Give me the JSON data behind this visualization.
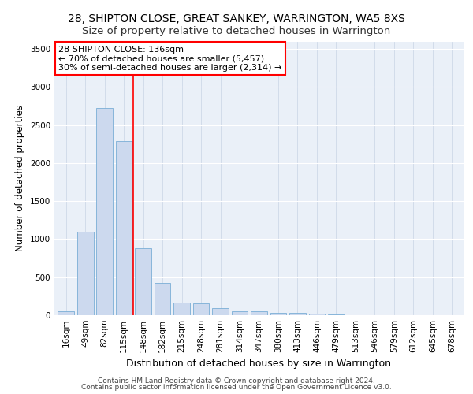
{
  "title1": "28, SHIPTON CLOSE, GREAT SANKEY, WARRINGTON, WA5 8XS",
  "title2": "Size of property relative to detached houses in Warrington",
  "xlabel": "Distribution of detached houses by size in Warrington",
  "ylabel": "Number of detached properties",
  "categories": [
    "16sqm",
    "49sqm",
    "82sqm",
    "115sqm",
    "148sqm",
    "182sqm",
    "215sqm",
    "248sqm",
    "281sqm",
    "314sqm",
    "347sqm",
    "380sqm",
    "413sqm",
    "446sqm",
    "479sqm",
    "513sqm",
    "546sqm",
    "579sqm",
    "612sqm",
    "645sqm",
    "678sqm"
  ],
  "values": [
    50,
    1100,
    2720,
    2290,
    880,
    420,
    165,
    160,
    90,
    55,
    50,
    35,
    30,
    20,
    10,
    5,
    5,
    2,
    2,
    1,
    1
  ],
  "bar_color": "#ccd9ee",
  "bar_edge_color": "#7aaed6",
  "vline_pos": 3.5,
  "vline_color": "red",
  "annotation_text": "28 SHIPTON CLOSE: 136sqm\n← 70% of detached houses are smaller (5,457)\n30% of semi-detached houses are larger (2,314) →",
  "annotation_box_color": "white",
  "annotation_box_edge": "red",
  "ylim": [
    0,
    3600
  ],
  "yticks": [
    0,
    500,
    1000,
    1500,
    2000,
    2500,
    3000,
    3500
  ],
  "footer1": "Contains HM Land Registry data © Crown copyright and database right 2024.",
  "footer2": "Contains public sector information licensed under the Open Government Licence v3.0.",
  "bg_color": "#eaf0f8",
  "grid_color": "#d0dce8",
  "title1_fontsize": 10,
  "title2_fontsize": 9.5,
  "xlabel_fontsize": 9,
  "ylabel_fontsize": 8.5,
  "tick_fontsize": 7.5,
  "annotation_fontsize": 8,
  "footer_fontsize": 6.5
}
